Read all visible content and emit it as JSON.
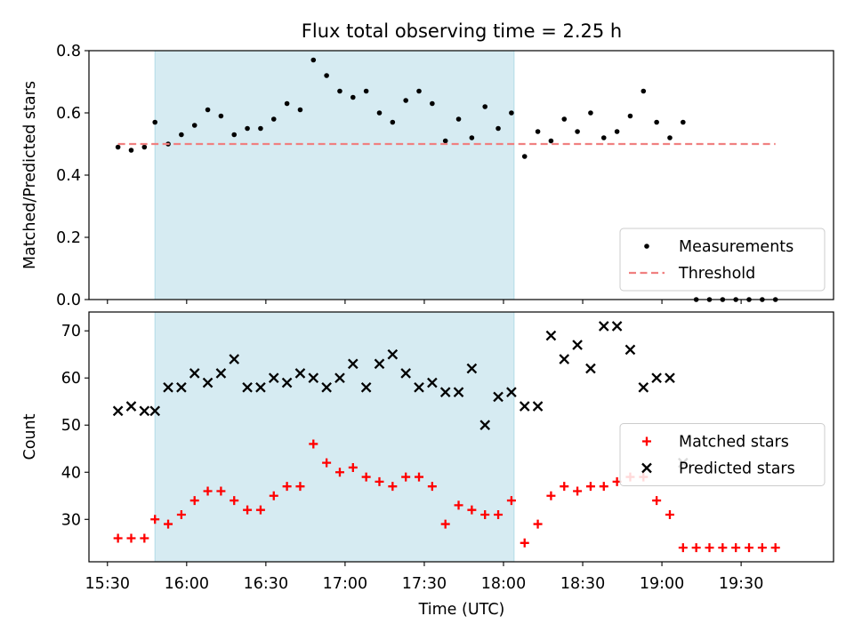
{
  "chart_data": {
    "title": "Flux total observing time = 2.25 h",
    "xlabel": "Time (UTC)",
    "xticks": [
      "15:30",
      "16:00",
      "16:30",
      "17:00",
      "17:30",
      "18:00",
      "18:30",
      "19:00",
      "19:30"
    ],
    "xlim": [
      "15:23",
      "20:05"
    ],
    "shaded_interval": [
      "15:48",
      "18:04"
    ],
    "colors": {
      "shade": "#add8e6",
      "threshold": "#f08080",
      "matched": "#ff0000",
      "predicted": "#000000",
      "measurement": "#000000"
    },
    "charts": [
      {
        "type": "scatter",
        "ylabel": "Matched/Predicted stars",
        "ylim": [
          0,
          0.8
        ],
        "yticks": [
          "0.0",
          "0.2",
          "0.4",
          "0.6",
          "0.8"
        ],
        "legend_position": "lower-right",
        "series": [
          {
            "name": "Measurements",
            "marker": "dot",
            "points": [
              [
                "15:34",
                0.49
              ],
              [
                "15:39",
                0.48
              ],
              [
                "15:44",
                0.49
              ],
              [
                "15:48",
                0.57
              ],
              [
                "15:53",
                0.5
              ],
              [
                "15:58",
                0.53
              ],
              [
                "16:03",
                0.56
              ],
              [
                "16:08",
                0.61
              ],
              [
                "16:13",
                0.59
              ],
              [
                "16:18",
                0.53
              ],
              [
                "16:23",
                0.55
              ],
              [
                "16:28",
                0.55
              ],
              [
                "16:33",
                0.58
              ],
              [
                "16:38",
                0.63
              ],
              [
                "16:43",
                0.61
              ],
              [
                "16:48",
                0.77
              ],
              [
                "16:53",
                0.72
              ],
              [
                "16:58",
                0.67
              ],
              [
                "17:03",
                0.65
              ],
              [
                "17:08",
                0.67
              ],
              [
                "17:13",
                0.6
              ],
              [
                "17:18",
                0.57
              ],
              [
                "17:23",
                0.64
              ],
              [
                "17:28",
                0.67
              ],
              [
                "17:33",
                0.63
              ],
              [
                "17:38",
                0.51
              ],
              [
                "17:43",
                0.58
              ],
              [
                "17:48",
                0.52
              ],
              [
                "17:53",
                0.62
              ],
              [
                "17:58",
                0.55
              ],
              [
                "18:03",
                0.6
              ],
              [
                "18:08",
                0.46
              ],
              [
                "18:13",
                0.54
              ],
              [
                "18:18",
                0.51
              ],
              [
                "18:23",
                0.58
              ],
              [
                "18:28",
                0.54
              ],
              [
                "18:33",
                0.6
              ],
              [
                "18:38",
                0.52
              ],
              [
                "18:43",
                0.54
              ],
              [
                "18:48",
                0.59
              ],
              [
                "18:53",
                0.67
              ],
              [
                "18:58",
                0.57
              ],
              [
                "19:03",
                0.52
              ],
              [
                "19:08",
                0.57
              ],
              [
                "19:13",
                0.0
              ],
              [
                "19:18",
                0.0
              ],
              [
                "19:23",
                0.0
              ],
              [
                "19:28",
                0.0
              ],
              [
                "19:33",
                0.0
              ],
              [
                "19:38",
                0.0
              ],
              [
                "19:43",
                0.0
              ]
            ]
          },
          {
            "name": "Threshold",
            "marker": "dashed-line",
            "points": [
              [
                "15:34",
                0.5
              ],
              [
                "19:43",
                0.5
              ]
            ]
          }
        ]
      },
      {
        "type": "scatter",
        "ylabel": "Count",
        "ylim": [
          21,
          74
        ],
        "yticks": [
          "30",
          "40",
          "50",
          "60",
          "70"
        ],
        "legend_position": "center-right",
        "series": [
          {
            "name": "Matched stars",
            "marker": "plus",
            "points": [
              [
                "15:34",
                26
              ],
              [
                "15:39",
                26
              ],
              [
                "15:44",
                26
              ],
              [
                "15:48",
                30
              ],
              [
                "15:53",
                29
              ],
              [
                "15:58",
                31
              ],
              [
                "16:03",
                34
              ],
              [
                "16:08",
                36
              ],
              [
                "16:13",
                36
              ],
              [
                "16:18",
                34
              ],
              [
                "16:23",
                32
              ],
              [
                "16:28",
                32
              ],
              [
                "16:33",
                35
              ],
              [
                "16:38",
                37
              ],
              [
                "16:43",
                37
              ],
              [
                "16:48",
                46
              ],
              [
                "16:53",
                42
              ],
              [
                "16:58",
                40
              ],
              [
                "17:03",
                41
              ],
              [
                "17:08",
                39
              ],
              [
                "17:13",
                38
              ],
              [
                "17:18",
                37
              ],
              [
                "17:23",
                39
              ],
              [
                "17:28",
                39
              ],
              [
                "17:33",
                37
              ],
              [
                "17:38",
                29
              ],
              [
                "17:43",
                33
              ],
              [
                "17:48",
                32
              ],
              [
                "17:53",
                31
              ],
              [
                "17:58",
                31
              ],
              [
                "18:03",
                34
              ],
              [
                "18:08",
                25
              ],
              [
                "18:13",
                29
              ],
              [
                "18:18",
                35
              ],
              [
                "18:23",
                37
              ],
              [
                "18:28",
                36
              ],
              [
                "18:33",
                37
              ],
              [
                "18:38",
                37
              ],
              [
                "18:43",
                38
              ],
              [
                "18:48",
                39
              ],
              [
                "18:53",
                39
              ],
              [
                "18:58",
                34
              ],
              [
                "19:03",
                31
              ],
              [
                "19:08",
                24
              ],
              [
                "19:13",
                24
              ],
              [
                "19:18",
                24
              ],
              [
                "19:23",
                24
              ],
              [
                "19:28",
                24
              ],
              [
                "19:33",
                24
              ],
              [
                "19:38",
                24
              ],
              [
                "19:43",
                24
              ]
            ]
          },
          {
            "name": "Predicted stars",
            "marker": "x",
            "points": [
              [
                "15:34",
                53
              ],
              [
                "15:39",
                54
              ],
              [
                "15:44",
                53
              ],
              [
                "15:48",
                53
              ],
              [
                "15:53",
                58
              ],
              [
                "15:58",
                58
              ],
              [
                "16:03",
                61
              ],
              [
                "16:08",
                59
              ],
              [
                "16:13",
                61
              ],
              [
                "16:18",
                64
              ],
              [
                "16:23",
                58
              ],
              [
                "16:28",
                58
              ],
              [
                "16:33",
                60
              ],
              [
                "16:38",
                59
              ],
              [
                "16:43",
                61
              ],
              [
                "16:48",
                60
              ],
              [
                "16:53",
                58
              ],
              [
                "16:58",
                60
              ],
              [
                "17:03",
                63
              ],
              [
                "17:08",
                58
              ],
              [
                "17:13",
                63
              ],
              [
                "17:18",
                65
              ],
              [
                "17:23",
                61
              ],
              [
                "17:28",
                58
              ],
              [
                "17:33",
                59
              ],
              [
                "17:38",
                57
              ],
              [
                "17:43",
                57
              ],
              [
                "17:48",
                62
              ],
              [
                "17:53",
                50
              ],
              [
                "17:58",
                56
              ],
              [
                "18:03",
                57
              ],
              [
                "18:08",
                54
              ],
              [
                "18:13",
                54
              ],
              [
                "18:18",
                69
              ],
              [
                "18:23",
                64
              ],
              [
                "18:28",
                67
              ],
              [
                "18:33",
                62
              ],
              [
                "18:38",
                71
              ],
              [
                "18:43",
                71
              ],
              [
                "18:48",
                66
              ],
              [
                "18:53",
                58
              ],
              [
                "18:58",
                60
              ],
              [
                "19:03",
                60
              ],
              [
                "19:08",
                42
              ]
            ]
          }
        ]
      }
    ]
  }
}
